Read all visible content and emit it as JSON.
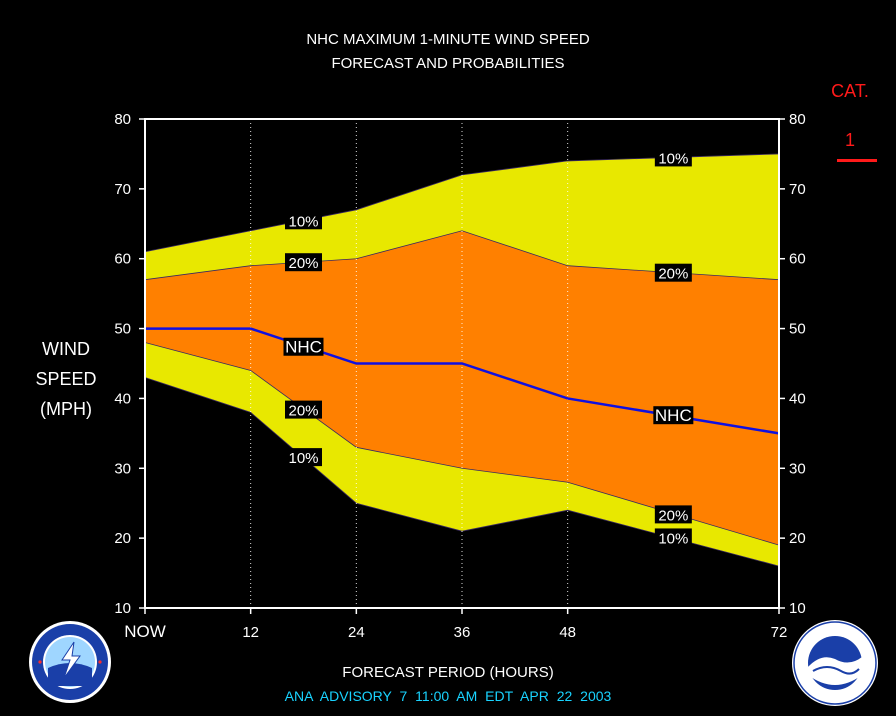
{
  "title_line1": "NHC MAXIMUM 1-MINUTE WIND SPEED",
  "title_line2": "FORECAST AND PROBABILITIES",
  "ylabel_lines": [
    "WIND",
    "SPEED",
    "(MPH)"
  ],
  "xlabel": "FORECAST PERIOD (HOURS)",
  "advisory": "ANA   ADVISORY  7  11:00  AM  EDT  APR  22  2003",
  "category": {
    "label": "CAT.",
    "value": "1"
  },
  "colors": {
    "background": "#000000",
    "band_10": "#e8e800",
    "band_20": "#ff8000",
    "nhc_line": "#1010e0",
    "category": "#ff1a1a",
    "advisory": "#19d3ff"
  },
  "chart_data": {
    "type": "area",
    "title": "NHC MAXIMUM 1-MINUTE WIND SPEED FORECAST AND PROBABILITIES",
    "xlabel": "FORECAST PERIOD (HOURS)",
    "ylabel": "WIND SPEED (MPH)",
    "x": [
      0,
      12,
      24,
      36,
      48,
      72
    ],
    "x_tick_labels": [
      "NOW",
      "12",
      "24",
      "36",
      "48",
      "72"
    ],
    "y_ticks": [
      "10",
      "20",
      "30",
      "40",
      "50",
      "60",
      "70",
      "80"
    ],
    "ylim": [
      10,
      80
    ],
    "xlim": [
      0,
      72
    ],
    "grid": "vertical dotted at forecast hours",
    "series": [
      {
        "name": "10%",
        "values": [
          61,
          64,
          67,
          72,
          74,
          75
        ]
      },
      {
        "name": "20%",
        "values": [
          57,
          59,
          60,
          64,
          59,
          57
        ]
      },
      {
        "name": "NHC",
        "values": [
          50,
          50,
          45,
          45,
          40,
          35
        ]
      },
      {
        "name": "20%",
        "values": [
          48,
          44,
          33,
          30,
          28,
          19
        ]
      },
      {
        "name": "10%",
        "values": [
          43,
          38,
          25,
          21,
          24,
          16
        ]
      }
    ],
    "annotations": [
      {
        "text": "10%",
        "x": 18,
        "y": 65.5
      },
      {
        "text": "20%",
        "x": 18,
        "y": 59.5
      },
      {
        "text": "NHC",
        "x": 18,
        "y": 47.4
      },
      {
        "text": "20%",
        "x": 18,
        "y": 38.4
      },
      {
        "text": "10%",
        "x": 18,
        "y": 31.6
      },
      {
        "text": "10%",
        "x": 60,
        "y": 74.5
      },
      {
        "text": "20%",
        "x": 60,
        "y": 58.0
      },
      {
        "text": "NHC",
        "x": 60,
        "y": 37.6
      },
      {
        "text": "20%",
        "x": 60,
        "y": 23.4
      },
      {
        "text": "10%",
        "x": 60,
        "y": 20.1
      }
    ]
  }
}
